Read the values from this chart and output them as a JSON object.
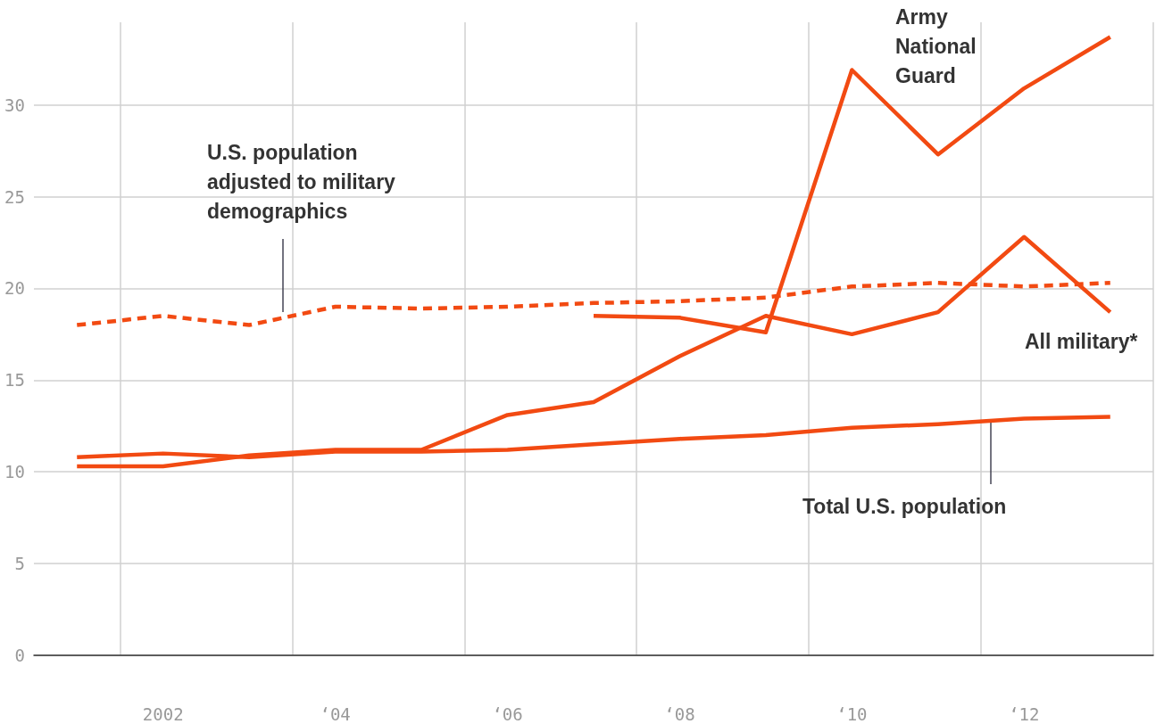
{
  "chart_data": {
    "type": "line",
    "categories": [
      null,
      "2002",
      null,
      "‘04",
      null,
      "‘06",
      null,
      "‘08",
      null,
      "‘10",
      null,
      "‘12",
      null
    ],
    "series": [
      {
        "name": "Army National Guard",
        "color": "#f24a12",
        "values": [
          null,
          null,
          null,
          null,
          null,
          null,
          18.5,
          18.4,
          17.6,
          31.9,
          27.3,
          30.9,
          33.7
        ]
      },
      {
        "name": "All military*",
        "color": "#f24a12",
        "values": [
          10.3,
          10.3,
          10.9,
          11.2,
          11.2,
          13.1,
          13.8,
          16.3,
          18.5,
          17.5,
          18.7,
          22.8,
          18.7
        ]
      },
      {
        "name": "U.S. population adjusted to military demographics",
        "color": "#f24a12",
        "line_style": "dashed",
        "values": [
          18.0,
          18.5,
          18.0,
          19.0,
          18.9,
          19.0,
          19.2,
          19.3,
          19.5,
          20.1,
          20.3,
          20.1,
          20.3
        ]
      },
      {
        "name": "Total U.S. population",
        "color": "#f24a12",
        "values": [
          10.8,
          11.0,
          10.8,
          11.1,
          11.1,
          11.2,
          11.5,
          11.8,
          12.0,
          12.4,
          12.6,
          12.9,
          13.0
        ]
      }
    ],
    "ylim": [
      0,
      34.5
    ],
    "yticks": [
      0,
      5,
      10,
      15,
      20,
      25,
      30
    ],
    "grid": true,
    "legend": false,
    "marker": "none",
    "line_style": "solid"
  }
}
